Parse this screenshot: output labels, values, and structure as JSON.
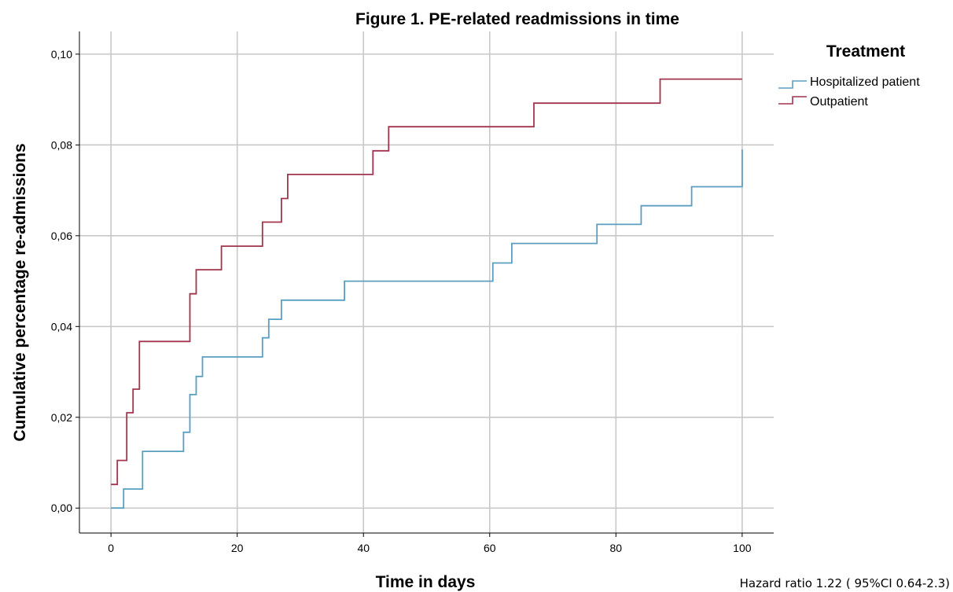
{
  "chart_data": {
    "type": "line",
    "step": true,
    "title": "Figure 1. PE-related readmissions in time",
    "xlabel": "Time in days",
    "ylabel": "Cumulative percentage re-admissions",
    "xlim": [
      -5,
      105
    ],
    "ylim": [
      -0.0055,
      0.105
    ],
    "x_ticks": [
      0,
      20,
      40,
      60,
      80,
      100
    ],
    "x_tick_labels": [
      "0",
      "20",
      "40",
      "60",
      "80",
      "100"
    ],
    "y_ticks": [
      0,
      0.02,
      0.04,
      0.06,
      0.08,
      0.1
    ],
    "y_tick_labels": [
      "0,00",
      "0,02",
      "0,04",
      "0,06",
      "0,08",
      "0,10"
    ],
    "grid": true,
    "legend": {
      "title": "Treatment",
      "position": "right"
    },
    "series": [
      {
        "name": "Hospitalized patient",
        "color": "#5a9fc0",
        "x": [
          0,
          2,
          5,
          11.5,
          12.5,
          13.5,
          14.5,
          24,
          25,
          27,
          37,
          60.5,
          63.5,
          77,
          84,
          92,
          100,
          100
        ],
        "y": [
          0,
          0.0042,
          0.0125,
          0.0167,
          0.025,
          0.029,
          0.0333,
          0.0375,
          0.0416,
          0.0458,
          0.05,
          0.054,
          0.0583,
          0.0625,
          0.0666,
          0.0708,
          0.075,
          0.079
        ]
      },
      {
        "name": "Outpatient",
        "color": "#a3344e",
        "x": [
          0,
          1,
          2.5,
          3.5,
          4.5,
          12.5,
          13.5,
          17.5,
          24,
          27,
          28,
          41.5,
          44,
          67,
          87,
          100
        ],
        "y": [
          0.0052,
          0.0105,
          0.021,
          0.0262,
          0.0367,
          0.0472,
          0.0525,
          0.0577,
          0.063,
          0.0682,
          0.0735,
          0.0787,
          0.084,
          0.0892,
          0.0945,
          0.0945
        ]
      }
    ]
  },
  "note": "Hazard ratio 1.22 ( 95%CI 0.64-2.3)"
}
